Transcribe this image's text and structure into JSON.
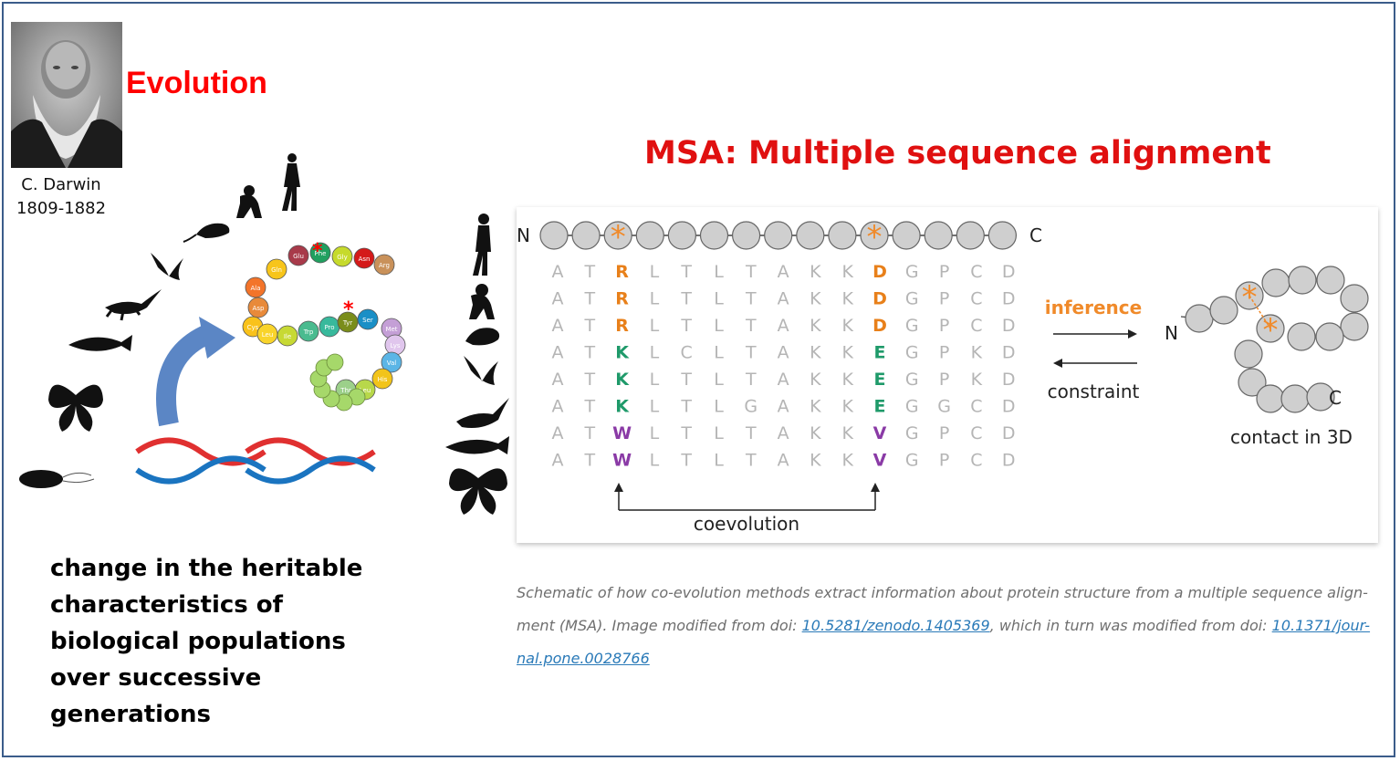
{
  "evolution": {
    "title": "Evolution",
    "darwin_name": "C. Darwin",
    "darwin_years": "1809-1882",
    "definition_lines": [
      "change in the heritable",
      "characteristics of",
      "biological populations",
      "over successive",
      "generations"
    ],
    "protein_residues": [
      "Ala",
      "Gln",
      "Glu",
      "Phe",
      "Gly",
      "Asn",
      "Arg",
      "Asp",
      "Cys",
      "Leu",
      "Ile",
      "Trp",
      "Pro",
      "Tyr",
      "Ser",
      "Met",
      "Lys",
      "Val",
      "His",
      "Leu",
      "Thr"
    ],
    "organisms": [
      "bacterium",
      "butterfly",
      "fish",
      "lizard",
      "bird",
      "rodent",
      "ape",
      "human"
    ],
    "colors": {
      "title": "#ff0000",
      "arrow": "#5b86c5",
      "star": "#ff0000"
    }
  },
  "msa": {
    "title": "MSA: Multiple sequence alignment",
    "n_label": "N",
    "c_label": "C",
    "sequences": [
      [
        "A",
        "T",
        "R",
        "L",
        "T",
        "L",
        "T",
        "A",
        "K",
        "K",
        "D",
        "G",
        "P",
        "C",
        "D"
      ],
      [
        "A",
        "T",
        "R",
        "L",
        "T",
        "L",
        "T",
        "A",
        "K",
        "K",
        "D",
        "G",
        "P",
        "C",
        "D"
      ],
      [
        "A",
        "T",
        "R",
        "L",
        "T",
        "L",
        "T",
        "A",
        "K",
        "K",
        "D",
        "G",
        "P",
        "C",
        "D"
      ],
      [
        "A",
        "T",
        "K",
        "L",
        "C",
        "L",
        "T",
        "A",
        "K",
        "K",
        "E",
        "G",
        "P",
        "K",
        "D"
      ],
      [
        "A",
        "T",
        "K",
        "L",
        "T",
        "L",
        "T",
        "A",
        "K",
        "K",
        "E",
        "G",
        "P",
        "K",
        "D"
      ],
      [
        "A",
        "T",
        "K",
        "L",
        "T",
        "L",
        "G",
        "A",
        "K",
        "K",
        "E",
        "G",
        "G",
        "C",
        "D"
      ],
      [
        "A",
        "T",
        "W",
        "L",
        "T",
        "L",
        "T",
        "A",
        "K",
        "K",
        "V",
        "G",
        "P",
        "C",
        "D"
      ],
      [
        "A",
        "T",
        "W",
        "L",
        "T",
        "L",
        "T",
        "A",
        "K",
        "K",
        "V",
        "G",
        "P",
        "C",
        "D"
      ]
    ],
    "coevolving_columns": [
      2,
      10
    ],
    "residue_colors": {
      "R": "#e8801a",
      "D": "#e8801a",
      "K": "#1f9a6a",
      "E": "#1f9a6a",
      "W": "#8a3aa6",
      "V": "#8a3aa6",
      "default": "#b5b5b5"
    },
    "inference_label": "inference",
    "constraint_label": "constraint",
    "coevolution_label": "coevolution",
    "contact_label": "contact in 3D",
    "star_color": "#f08a2a"
  },
  "caption": {
    "text1": "Schematic of how co-evolution methods extract information about protein structure from a multiple sequence align-",
    "text2": "ment (MSA). Image modified from doi: ",
    "link1": "10.5281/zenodo.1405369",
    "text3": ", which in turn was modified from doi: ",
    "link2a": "10.1371/jour-",
    "link2b": "nal.pone.0028766"
  }
}
